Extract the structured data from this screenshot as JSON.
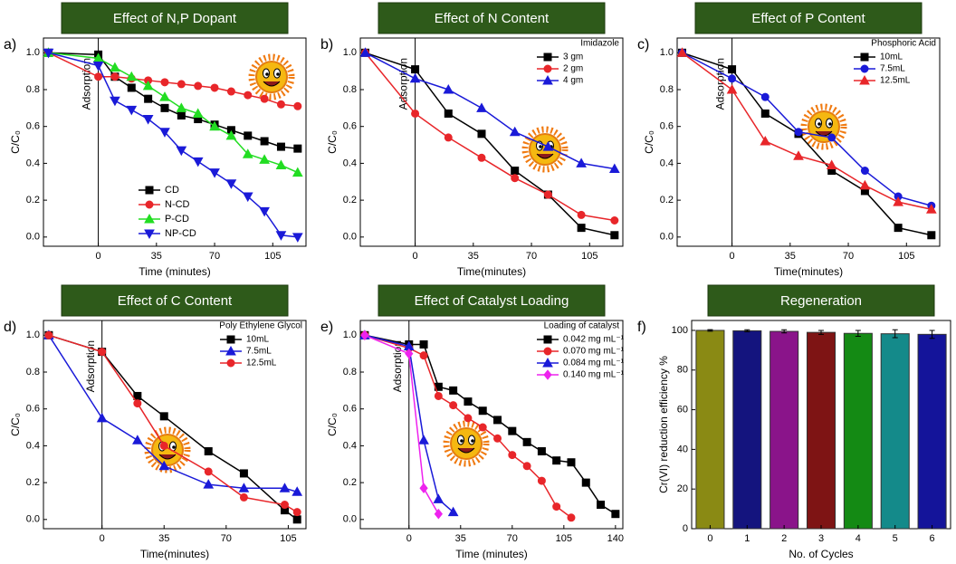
{
  "chart_data": [
    {
      "type": "line",
      "label": "a)",
      "title": "Effect of N,P Dopant",
      "xlabel": "Time (minutes)",
      "ylabel": "C/C₀",
      "annotation": {
        "text": "Adsorption",
        "x": 0
      },
      "legend": "lower center",
      "x": [
        -30,
        0,
        10,
        20,
        30,
        40,
        50,
        60,
        70,
        80,
        90,
        100,
        110,
        120
      ],
      "series": [
        {
          "name": "CD",
          "color": "#000000",
          "marker": "square",
          "values": [
            1.0,
            0.99,
            0.87,
            0.81,
            0.75,
            0.7,
            0.66,
            0.64,
            0.61,
            0.58,
            0.55,
            0.52,
            0.49,
            0.48
          ]
        },
        {
          "name": "N-CD",
          "color": "#e8262a",
          "marker": "circle",
          "values": [
            1.0,
            0.87,
            0.87,
            0.86,
            0.85,
            0.84,
            0.83,
            0.82,
            0.81,
            0.79,
            0.77,
            0.75,
            0.72,
            0.71
          ]
        },
        {
          "name": "P-CD",
          "color": "#22dd22",
          "marker": "triangle",
          "values": [
            1.0,
            0.97,
            0.92,
            0.87,
            0.82,
            0.76,
            0.7,
            0.67,
            0.6,
            0.55,
            0.45,
            0.42,
            0.39,
            0.35
          ]
        },
        {
          "name": "NP-CD",
          "color": "#1a1ad8",
          "marker": "triangle-down",
          "values": [
            1.0,
            0.93,
            0.74,
            0.69,
            0.64,
            0.57,
            0.47,
            0.41,
            0.35,
            0.29,
            0.22,
            0.14,
            0.01,
            0.0
          ]
        }
      ],
      "xlim": [
        -33,
        125
      ],
      "ylim": [
        -0.05,
        1.08
      ],
      "xticks": [
        0,
        35,
        70,
        105
      ],
      "yticks": [
        {
          "value": 0,
          "label": "0.0"
        },
        0.2,
        0.4,
        0.6,
        0.8,
        {
          "value": 1,
          "label": "1.0"
        }
      ]
    },
    {
      "type": "line",
      "label": "b)",
      "title": "Effect of N Content",
      "xlabel": "Time(minutes)",
      "ylabel": "C/C₀",
      "annotation": {
        "text": "Adsorption",
        "x": 0
      },
      "legend": "upper right",
      "legend_title": "Imidazole",
      "x": [
        -30,
        0,
        20,
        40,
        60,
        80,
        100,
        120
      ],
      "series": [
        {
          "name": "3 gm",
          "color": "#000000",
          "marker": "square",
          "values": [
            1.0,
            0.91,
            0.67,
            0.56,
            0.36,
            0.23,
            0.05,
            0.01
          ]
        },
        {
          "name": "2 gm",
          "color": "#e8262a",
          "marker": "circle",
          "values": [
            1.0,
            0.67,
            0.54,
            0.43,
            0.32,
            0.23,
            0.12,
            0.09
          ]
        },
        {
          "name": "4 gm",
          "color": "#1a1ad8",
          "marker": "triangle",
          "values": [
            1.0,
            0.86,
            0.8,
            0.7,
            0.57,
            0.49,
            0.4,
            0.37
          ]
        }
      ],
      "xlim": [
        -33,
        125
      ],
      "ylim": [
        -0.05,
        1.08
      ],
      "xticks": [
        0,
        35,
        70,
        105
      ],
      "yticks": [
        {
          "value": 0,
          "label": "0.0"
        },
        0.2,
        0.4,
        0.6,
        0.8,
        {
          "value": 1,
          "label": "1.0"
        }
      ]
    },
    {
      "type": "line",
      "label": "c)",
      "title": "Effect of P Content",
      "xlabel": "Time(minutes)",
      "ylabel": "C/C₀",
      "annotation": {
        "text": "Adsorption",
        "x": 0
      },
      "legend": "upper right",
      "legend_title": "Phosphoric Acid",
      "x": [
        -30,
        0,
        20,
        40,
        60,
        80,
        100,
        120
      ],
      "series": [
        {
          "name": "10mL",
          "color": "#000000",
          "marker": "square",
          "values": [
            1.0,
            0.91,
            0.67,
            0.56,
            0.36,
            0.25,
            0.05,
            0.01
          ]
        },
        {
          "name": "7.5mL",
          "color": "#1a1ad8",
          "marker": "circle",
          "values": [
            1.0,
            0.86,
            0.76,
            0.57,
            0.54,
            0.36,
            0.22,
            0.17
          ]
        },
        {
          "name": "12.5mL",
          "color": "#e8262a",
          "marker": "triangle",
          "values": [
            1.0,
            0.8,
            0.52,
            0.44,
            0.39,
            0.28,
            0.19,
            0.15
          ]
        }
      ],
      "xlim": [
        -33,
        125
      ],
      "ylim": [
        -0.05,
        1.08
      ],
      "xticks": [
        0,
        35,
        70,
        105
      ],
      "yticks": [
        {
          "value": 0,
          "label": "0.0"
        },
        0.2,
        0.4,
        0.6,
        0.8,
        {
          "value": 1,
          "label": "1.0"
        }
      ]
    },
    {
      "type": "line",
      "label": "d)",
      "title": "Effect of C Content",
      "xlabel": "Time(minutes)",
      "ylabel": "C/C₀",
      "annotation": {
        "text": "Adsorption",
        "x": 0
      },
      "legend": "upper right",
      "legend_title": "Poly Ethylene Glycol",
      "x": [
        -30,
        0,
        20,
        35,
        60,
        80,
        103,
        110
      ],
      "series": [
        {
          "name": "10mL",
          "color": "#000000",
          "marker": "square",
          "values": [
            1.0,
            0.91,
            0.67,
            0.56,
            0.37,
            0.25,
            0.05,
            0.0
          ]
        },
        {
          "name": "7.5mL",
          "color": "#1a1ad8",
          "marker": "triangle",
          "values": [
            1.0,
            0.55,
            0.43,
            0.29,
            0.19,
            0.17,
            0.17,
            0.15
          ]
        },
        {
          "name": "12.5mL",
          "color": "#e8262a",
          "marker": "circle",
          "values": [
            1.0,
            0.91,
            0.63,
            0.4,
            0.26,
            0.12,
            0.08,
            0.04
          ]
        }
      ],
      "xlim": [
        -33,
        115
      ],
      "ylim": [
        -0.05,
        1.08
      ],
      "xticks": [
        0,
        35,
        70,
        105
      ],
      "yticks": [
        {
          "value": 0,
          "label": "0.0"
        },
        0.2,
        0.4,
        0.6,
        0.8,
        {
          "value": 1,
          "label": "1.0"
        }
      ]
    },
    {
      "type": "line",
      "label": "e)",
      "title": "Effect of Catalyst Loading",
      "xlabel": "Time (minutes)",
      "ylabel": "C/C₀",
      "annotation": {
        "text": "Adsorption",
        "x": 0
      },
      "legend": "upper right",
      "legend_title": "Loading of catalyst",
      "series": [
        {
          "name": "0.042 mg mL⁻¹",
          "color": "#000000",
          "marker": "square",
          "x": [
            -30,
            0,
            10,
            20,
            30,
            40,
            50,
            60,
            70,
            80,
            90,
            100,
            110,
            120,
            130,
            140
          ],
          "values": [
            1.0,
            0.95,
            0.95,
            0.72,
            0.7,
            0.64,
            0.59,
            0.54,
            0.48,
            0.42,
            0.37,
            0.32,
            0.31,
            0.2,
            0.08,
            0.03
          ]
        },
        {
          "name": "0.070 mg mL⁻¹",
          "color": "#e8262a",
          "marker": "circle",
          "x": [
            -30,
            0,
            10,
            20,
            30,
            40,
            50,
            60,
            70,
            80,
            90,
            100,
            110
          ],
          "values": [
            1.0,
            0.93,
            0.89,
            0.67,
            0.62,
            0.55,
            0.5,
            0.44,
            0.35,
            0.29,
            0.21,
            0.07,
            0.01
          ]
        },
        {
          "name": "0.084 mg mL⁻¹",
          "color": "#1a1ad8",
          "marker": "triangle",
          "x": [
            -30,
            0,
            10,
            20,
            30
          ],
          "values": [
            1.0,
            0.94,
            0.43,
            0.11,
            0.04
          ]
        },
        {
          "name": "0.140 mg mL⁻¹",
          "color": "#ee22ee",
          "marker": "diamond",
          "x": [
            -30,
            0,
            10,
            20
          ],
          "values": [
            1.0,
            0.9,
            0.17,
            0.03
          ]
        }
      ],
      "xlim": [
        -33,
        145
      ],
      "ylim": [
        -0.05,
        1.08
      ],
      "xticks": [
        0,
        35,
        70,
        105,
        140
      ],
      "yticks": [
        {
          "value": 0,
          "label": "0.0"
        },
        0.2,
        0.4,
        0.6,
        0.8,
        {
          "value": 1,
          "label": "1.0"
        }
      ]
    },
    {
      "type": "bar",
      "label": "f)",
      "title": "Regeneration",
      "xlabel": "No. of Cycles",
      "ylabel": "Cr(VI) reduction efficiency %",
      "categories": [
        "0",
        "1",
        "2",
        "3",
        "4",
        "5",
        "6"
      ],
      "values": [
        100,
        99.8,
        99.5,
        99,
        98.5,
        98.3,
        98
      ],
      "errors": [
        0.4,
        0.5,
        0.8,
        1.0,
        1.5,
        2.0,
        2.0
      ],
      "colors": [
        "#8a8a14",
        "#14147e",
        "#8a148a",
        "#7e1414",
        "#148a14",
        "#148a8a",
        "#14149a"
      ],
      "ylim": [
        0,
        105
      ],
      "yticks": [
        0,
        20,
        40,
        60,
        80,
        100
      ]
    }
  ]
}
